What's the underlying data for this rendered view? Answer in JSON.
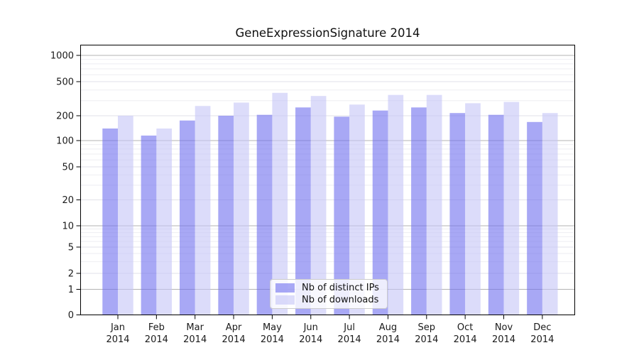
{
  "title": "GeneExpressionSignature 2014",
  "chart_data": {
    "type": "bar",
    "categories": [
      "Jan",
      "Feb",
      "Mar",
      "Apr",
      "May",
      "Jun",
      "Jul",
      "Aug",
      "Sep",
      "Oct",
      "Nov",
      "Dec"
    ],
    "x_year_label": "2014",
    "series": [
      {
        "name": "Nb of distinct IPs",
        "color": "#6e6eee",
        "values": [
          140,
          115,
          175,
          200,
          205,
          250,
          195,
          230,
          250,
          215,
          205,
          168
        ]
      },
      {
        "name": "Nb of downloads",
        "color": "#c5c5f7",
        "values": [
          200,
          140,
          260,
          285,
          370,
          340,
          270,
          350,
          350,
          280,
          290,
          215
        ]
      }
    ],
    "fill_opacity": 0.6,
    "yscale": "symlog",
    "yticks": [
      0,
      1,
      2,
      5,
      10,
      20,
      50,
      100,
      200,
      500,
      1000
    ],
    "ylim": [
      0,
      1300
    ],
    "grid": true,
    "grid_major_color": "#b3b3b3",
    "grid_mid_color": "#e2e2e8",
    "grid_minor_color": "#eeeef2",
    "axis_color": "#000000",
    "text_color": "#1a1a1a",
    "legend_position": "lower center"
  }
}
